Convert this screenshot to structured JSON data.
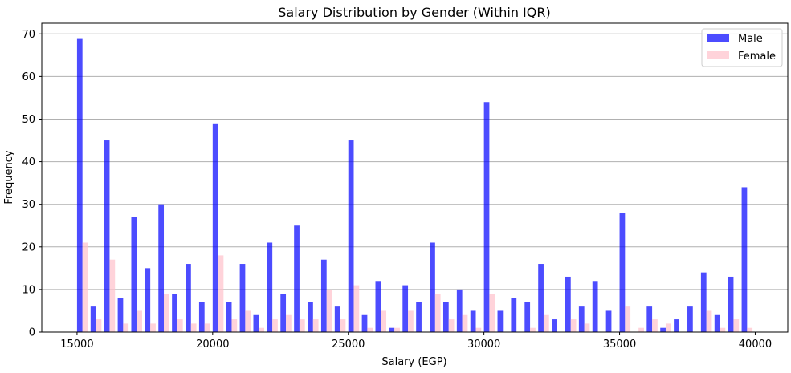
{
  "chart_data": {
    "type": "bar",
    "title": "Salary Distribution by Gender (Within IQR)",
    "xlabel": "Salary (EGP)",
    "ylabel": "Frequency",
    "xlim": [
      13700,
      41200
    ],
    "ylim": [
      0,
      72.5
    ],
    "xticks": [
      15000,
      20000,
      25000,
      30000,
      35000,
      40000
    ],
    "yticks": [
      0,
      10,
      20,
      30,
      40,
      50,
      60,
      70
    ],
    "grid": "y",
    "legend_position": "top-right",
    "bin_width": 500,
    "bin_start": 15000,
    "series": [
      {
        "name": "Male",
        "color": "#0000ff",
        "opacity": 0.7,
        "values": [
          69,
          6,
          45,
          8,
          27,
          15,
          30,
          9,
          16,
          7,
          49,
          7,
          16,
          4,
          21,
          9,
          25,
          7,
          17,
          6,
          45,
          4,
          12,
          1,
          11,
          7,
          21,
          7,
          10,
          5,
          54,
          5,
          8,
          7,
          16,
          3,
          13,
          6,
          12,
          5,
          28,
          0,
          6,
          1,
          3,
          6,
          14,
          4,
          13,
          34
        ]
      },
      {
        "name": "Female",
        "color": "#ffc0cb",
        "opacity": 0.7,
        "values": [
          21,
          3,
          17,
          2,
          5,
          2,
          9,
          3,
          2,
          2,
          18,
          3,
          5,
          1,
          3,
          4,
          3,
          3,
          10,
          3,
          11,
          1,
          5,
          1,
          5,
          0,
          9,
          3,
          4,
          1,
          9,
          0,
          0,
          1,
          4,
          0,
          3,
          2,
          0,
          0,
          6,
          1,
          3,
          2,
          0,
          0,
          5,
          1,
          3,
          1
        ]
      }
    ]
  }
}
